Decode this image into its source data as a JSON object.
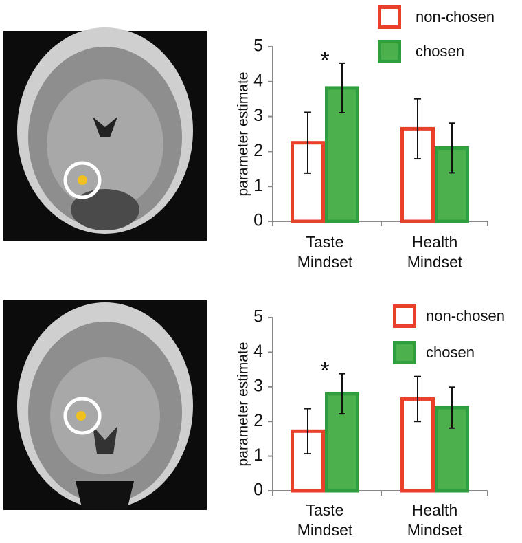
{
  "chart_data": [
    {
      "type": "bar",
      "categories": [
        "Taste Mindset",
        "Health Mindset"
      ],
      "series": [
        {
          "name": "non-chosen",
          "color": "#e8402a",
          "values": [
            2.25,
            2.65
          ],
          "errors": [
            0.87,
            0.86
          ]
        },
        {
          "name": "chosen",
          "color": "#4cb04c",
          "values": [
            3.82,
            2.1
          ],
          "errors": [
            0.71,
            0.71
          ]
        }
      ],
      "y_label": "parameter estimate",
      "annotation": "*",
      "ylim": [
        0,
        5
      ],
      "yticks": [
        0,
        1,
        2,
        3,
        4,
        5
      ]
    },
    {
      "type": "bar",
      "categories": [
        "Taste Mindset",
        "Health Mindset"
      ],
      "series": [
        {
          "name": "non-chosen",
          "color": "#e8402a",
          "values": [
            1.72,
            2.65
          ],
          "errors": [
            0.65,
            0.65
          ]
        },
        {
          "name": "chosen",
          "color": "#4cb04c",
          "values": [
            2.8,
            2.4
          ],
          "errors": [
            0.58,
            0.59
          ]
        }
      ],
      "y_label": "parameter estimate",
      "annotation": "*",
      "ylim": [
        0,
        5
      ],
      "yticks": [
        0,
        1,
        2,
        3,
        4,
        5
      ]
    }
  ]
}
